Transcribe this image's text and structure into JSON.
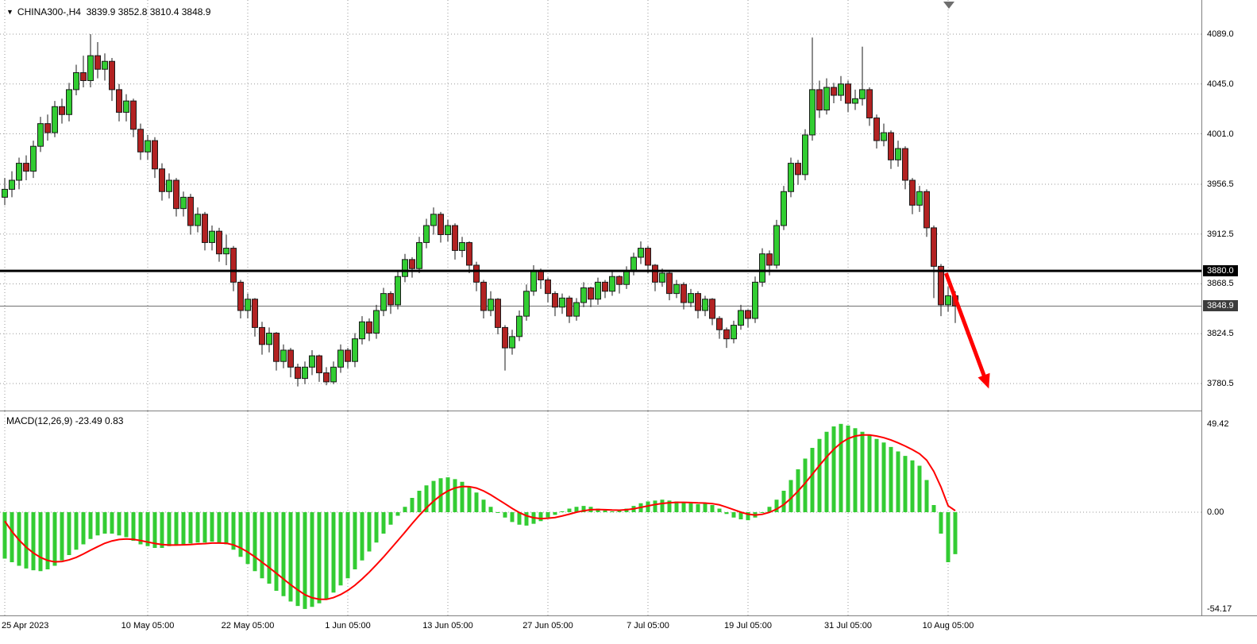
{
  "header": {
    "symbol": "CHINA300-,H4",
    "ohlc": "3839.9 3852.8 3810.4 3848.9"
  },
  "macd": {
    "label": "MACD(12,26,9) -23.49 0.83"
  },
  "colors": {
    "chart_bg": "#FFFFFF",
    "up": "#32CD32",
    "down": "#B22222",
    "wick": "#1A1A1A",
    "grid": "#9A9A9A",
    "histogram": "#33CC33",
    "signal": "#FF0000",
    "level_line": "#000000",
    "bid_line": "#707070",
    "arrow": "#FF0000",
    "axis_text": "#000000",
    "badge_level_bg": "#000000",
    "badge_bid_bg": "#3C3C3C",
    "separator": "#808080"
  },
  "price_axis": {
    "labels": [
      {
        "value": 4089.0,
        "text": "4089.0"
      },
      {
        "value": 4045.0,
        "text": "4045.0"
      },
      {
        "value": 4001.0,
        "text": "4001.0"
      },
      {
        "value": 3956.5,
        "text": "3956.5"
      },
      {
        "value": 3912.5,
        "text": "3912.5"
      },
      {
        "value": 3868.5,
        "text": "3868.5"
      },
      {
        "value": 3824.5,
        "text": "3824.5"
      },
      {
        "value": 3780.5,
        "text": "3780.5"
      }
    ],
    "level_badge": {
      "value": 3880.0,
      "text": "3880.0"
    },
    "bid_badge": {
      "value": 3848.9,
      "text": "3848.9"
    }
  },
  "macd_axis": {
    "labels": [
      {
        "value": 49.42,
        "text": "49.42"
      },
      {
        "value": 0,
        "text": "0.00"
      },
      {
        "value": -54.17,
        "text": "-54.17"
      }
    ]
  },
  "time_axis": [
    {
      "index": 0,
      "label": "25 Apr 2023"
    },
    {
      "index": 20,
      "label": "10 May 05:00"
    },
    {
      "index": 34,
      "label": "22 May 05:00"
    },
    {
      "index": 48,
      "label": "1 Jun 05:00"
    },
    {
      "index": 62,
      "label": "13 Jun 05:00"
    },
    {
      "index": 76,
      "label": "27 Jun 05:00"
    },
    {
      "index": 90,
      "label": "7 Jul 05:00"
    },
    {
      "index": 104,
      "label": "19 Jul 05:00"
    },
    {
      "index": 118,
      "label": "31 Jul 05:00"
    },
    {
      "index": 132,
      "label": "10 Aug 05:00"
    }
  ],
  "chart_data": [
    {
      "type": "candlestick",
      "symbol": "CHINA300-,H4",
      "timeframe": "H4",
      "last_ohlc": {
        "open": 3839.9,
        "high": 3852.8,
        "low": 3810.4,
        "close": 3848.9
      },
      "ylim": [
        3758,
        4101
      ],
      "level_line": 3880.0,
      "bid_price": 3848.9,
      "candles": [
        [
          3945,
          3962,
          3938,
          3952
        ],
        [
          3952,
          3968,
          3945,
          3960
        ],
        [
          3960,
          3980,
          3952,
          3975
        ],
        [
          3975,
          3982,
          3960,
          3968
        ],
        [
          3968,
          3995,
          3962,
          3990
        ],
        [
          3990,
          4016,
          3985,
          4010
        ],
        [
          4010,
          4018,
          3995,
          4002
        ],
        [
          4002,
          4030,
          3998,
          4025
        ],
        [
          4025,
          4032,
          4010,
          4018
        ],
        [
          4018,
          4046,
          4012,
          4040
        ],
        [
          4040,
          4062,
          4035,
          4055
        ],
        [
          4055,
          4070,
          4042,
          4048
        ],
        [
          4048,
          4089,
          4042,
          4070
        ],
        [
          4070,
          4082,
          4050,
          4058
        ],
        [
          4058,
          4072,
          4048,
          4065
        ],
        [
          4065,
          4068,
          4030,
          4040
        ],
        [
          4040,
          4045,
          4012,
          4020
        ],
        [
          4020,
          4036,
          4012,
          4030
        ],
        [
          4030,
          4032,
          3998,
          4005
        ],
        [
          4005,
          4010,
          3978,
          3985
        ],
        [
          3985,
          4000,
          3978,
          3995
        ],
        [
          3995,
          3998,
          3962,
          3970
        ],
        [
          3970,
          3975,
          3942,
          3950
        ],
        [
          3950,
          3966,
          3944,
          3960
        ],
        [
          3960,
          3962,
          3928,
          3935
        ],
        [
          3935,
          3950,
          3928,
          3945
        ],
        [
          3945,
          3948,
          3912,
          3920
        ],
        [
          3920,
          3936,
          3914,
          3930
        ],
        [
          3930,
          3932,
          3898,
          3905
        ],
        [
          3905,
          3920,
          3898,
          3915
        ],
        [
          3915,
          3918,
          3888,
          3895
        ],
        [
          3895,
          3912,
          3885,
          3900
        ],
        [
          3900,
          3902,
          3862,
          3870
        ],
        [
          3870,
          3872,
          3838,
          3845
        ],
        [
          3845,
          3860,
          3838,
          3855
        ],
        [
          3855,
          3856,
          3822,
          3830
        ],
        [
          3830,
          3835,
          3806,
          3815
        ],
        [
          3815,
          3830,
          3808,
          3825
        ],
        [
          3825,
          3826,
          3792,
          3800
        ],
        [
          3800,
          3815,
          3794,
          3810
        ],
        [
          3810,
          3812,
          3786,
          3795
        ],
        [
          3795,
          3798,
          3778,
          3785
        ],
        [
          3785,
          3800,
          3780,
          3795
        ],
        [
          3795,
          3810,
          3788,
          3805
        ],
        [
          3805,
          3806,
          3782,
          3790
        ],
        [
          3790,
          3795,
          3779,
          3782
        ],
        [
          3782,
          3800,
          3780,
          3795
        ],
        [
          3795,
          3815,
          3790,
          3810
        ],
        [
          3810,
          3812,
          3794,
          3800
        ],
        [
          3800,
          3825,
          3795,
          3820
        ],
        [
          3820,
          3840,
          3815,
          3835
        ],
        [
          3835,
          3838,
          3818,
          3825
        ],
        [
          3825,
          3850,
          3820,
          3845
        ],
        [
          3845,
          3865,
          3840,
          3860
        ],
        [
          3860,
          3862,
          3842,
          3850
        ],
        [
          3850,
          3880,
          3846,
          3875
        ],
        [
          3875,
          3895,
          3870,
          3890
        ],
        [
          3890,
          3892,
          3874,
          3882
        ],
        [
          3882,
          3910,
          3878,
          3905
        ],
        [
          3905,
          3926,
          3900,
          3920
        ],
        [
          3920,
          3936,
          3912,
          3930
        ],
        [
          3930,
          3932,
          3905,
          3912
        ],
        [
          3912,
          3925,
          3906,
          3920
        ],
        [
          3920,
          3922,
          3890,
          3898
        ],
        [
          3898,
          3910,
          3892,
          3905
        ],
        [
          3905,
          3906,
          3878,
          3885
        ],
        [
          3885,
          3888,
          3862,
          3870
        ],
        [
          3870,
          3872,
          3838,
          3845
        ],
        [
          3845,
          3862,
          3840,
          3855
        ],
        [
          3855,
          3856,
          3824,
          3830
        ],
        [
          3830,
          3832,
          3792,
          3812
        ],
        [
          3812,
          3828,
          3806,
          3822
        ],
        [
          3822,
          3845,
          3818,
          3840
        ],
        [
          3840,
          3868,
          3836,
          3862
        ],
        [
          3862,
          3885,
          3858,
          3880
        ],
        [
          3880,
          3882,
          3864,
          3872
        ],
        [
          3872,
          3874,
          3852,
          3860
        ],
        [
          3860,
          3862,
          3840,
          3848
        ],
        [
          3848,
          3860,
          3842,
          3856
        ],
        [
          3856,
          3858,
          3834,
          3840
        ],
        [
          3840,
          3856,
          3836,
          3852
        ],
        [
          3852,
          3870,
          3848,
          3865
        ],
        [
          3865,
          3866,
          3848,
          3855
        ],
        [
          3855,
          3874,
          3850,
          3870
        ],
        [
          3870,
          3872,
          3856,
          3862
        ],
        [
          3862,
          3880,
          3858,
          3875
        ],
        [
          3875,
          3876,
          3860,
          3868
        ],
        [
          3868,
          3884,
          3864,
          3880
        ],
        [
          3880,
          3896,
          3876,
          3892
        ],
        [
          3892,
          3906,
          3886,
          3900
        ],
        [
          3900,
          3902,
          3878,
          3885
        ],
        [
          3885,
          3886,
          3862,
          3870
        ],
        [
          3870,
          3882,
          3866,
          3878
        ],
        [
          3878,
          3880,
          3854,
          3860
        ],
        [
          3860,
          3872,
          3856,
          3868
        ],
        [
          3868,
          3870,
          3846,
          3852
        ],
        [
          3852,
          3864,
          3848,
          3860
        ],
        [
          3860,
          3862,
          3838,
          3845
        ],
        [
          3845,
          3858,
          3840,
          3855
        ],
        [
          3855,
          3856,
          3832,
          3838
        ],
        [
          3838,
          3840,
          3820,
          3828
        ],
        [
          3828,
          3830,
          3812,
          3820
        ],
        [
          3820,
          3836,
          3816,
          3832
        ],
        [
          3832,
          3850,
          3828,
          3845
        ],
        [
          3845,
          3846,
          3830,
          3838
        ],
        [
          3838,
          3875,
          3834,
          3870
        ],
        [
          3870,
          3900,
          3866,
          3895
        ],
        [
          3895,
          3898,
          3876,
          3885
        ],
        [
          3885,
          3925,
          3882,
          3920
        ],
        [
          3920,
          3955,
          3916,
          3950
        ],
        [
          3950,
          3980,
          3945,
          3975
        ],
        [
          3975,
          3978,
          3956,
          3965
        ],
        [
          3965,
          4005,
          3960,
          4000
        ],
        [
          4000,
          4086,
          3995,
          4040
        ],
        [
          4040,
          4048,
          4015,
          4022
        ],
        [
          4022,
          4050,
          4018,
          4042
        ],
        [
          4042,
          4046,
          4028,
          4035
        ],
        [
          4035,
          4052,
          4030,
          4045
        ],
        [
          4045,
          4048,
          4020,
          4028
        ],
        [
          4028,
          4040,
          4022,
          4032
        ],
        [
          4032,
          4078,
          4026,
          4040
        ],
        [
          4040,
          4042,
          4008,
          4015
        ],
        [
          4015,
          4018,
          3988,
          3995
        ],
        [
          3995,
          4010,
          3990,
          4002
        ],
        [
          4002,
          4004,
          3970,
          3978
        ],
        [
          3978,
          3995,
          3972,
          3988
        ],
        [
          3988,
          3990,
          3952,
          3960
        ],
        [
          3960,
          3962,
          3930,
          3938
        ],
        [
          3938,
          3955,
          3932,
          3950
        ],
        [
          3950,
          3952,
          3910,
          3918
        ],
        [
          3918,
          3920,
          3856,
          3884
        ],
        [
          3884,
          3886,
          3840,
          3850
        ],
        [
          3850,
          3866,
          3844,
          3858
        ],
        [
          3858,
          3862,
          3834,
          3848.9
        ]
      ],
      "annotations": [
        {
          "type": "arrow",
          "from_index": 131.7,
          "from_price": 3878,
          "to_index": 137.7,
          "to_price": 3776,
          "color": "#FF0000"
        }
      ]
    },
    {
      "type": "macd",
      "title": "MACD(12,26,9)",
      "current": {
        "macd": -23.49,
        "signal": 0.83
      },
      "ylim": [
        -54.17,
        49.42
      ],
      "histogram": [
        -26,
        -28,
        -30,
        -31.5,
        -32.5,
        -33,
        -32,
        -30,
        -27,
        -24,
        -21,
        -18,
        -15,
        -13,
        -12,
        -12,
        -13,
        -14,
        -16,
        -18,
        -19,
        -20,
        -20,
        -19,
        -18.5,
        -18,
        -17.5,
        -17,
        -17,
        -16.5,
        -17,
        -18,
        -21,
        -25,
        -29,
        -33,
        -37,
        -40,
        -44,
        -47,
        -50,
        -52.5,
        -54.17,
        -53,
        -51,
        -49,
        -45,
        -41,
        -37,
        -32,
        -27,
        -22,
        -17,
        -12,
        -7,
        -2,
        3,
        8,
        12,
        15,
        17.5,
        19,
        19.5,
        18.5,
        17,
        14,
        11,
        7,
        3,
        0,
        -3,
        -5.5,
        -7,
        -7.5,
        -6.5,
        -5,
        -3,
        -1.5,
        0.5,
        2,
        3,
        3.5,
        3,
        2,
        1,
        0.5,
        1,
        2,
        3.5,
        5,
        6,
        6.5,
        7,
        6.5,
        6,
        5.5,
        5,
        4.5,
        5,
        4,
        2,
        -1,
        -3,
        -4,
        -4.5,
        -3,
        0,
        3,
        7,
        12,
        18,
        24,
        30,
        36,
        41,
        45,
        48,
        49.42,
        48.5,
        47,
        45,
        43,
        41,
        39,
        36.5,
        34,
        31.5,
        29,
        26,
        18,
        4,
        -12,
        -28,
        -23.49
      ],
      "signal": [
        -5,
        -10.8,
        -15.6,
        -19.6,
        -22.8,
        -25.3,
        -27,
        -27.8,
        -27.6,
        -26.7,
        -25.3,
        -23.4,
        -21.3,
        -19.3,
        -17.4,
        -16.1,
        -15.3,
        -15,
        -15.2,
        -15.9,
        -16.7,
        -17.5,
        -18.1,
        -18.4,
        -18.4,
        -18.3,
        -18.1,
        -17.8,
        -17.6,
        -17.3,
        -17.3,
        -17.4,
        -18.3,
        -20,
        -22.3,
        -25,
        -28,
        -31,
        -34.2,
        -37.4,
        -40.6,
        -43.5,
        -46.2,
        -47.9,
        -48.7,
        -48.8,
        -47.8,
        -46.1,
        -43.8,
        -40.9,
        -37.4,
        -33.6,
        -29.4,
        -25.1,
        -20.5,
        -15.9,
        -11.2,
        -6.4,
        -1.8,
        2.4,
        6.2,
        9.4,
        11.9,
        13.6,
        14.4,
        14.3,
        13.5,
        11.9,
        9.7,
        7.2,
        4.7,
        2.1,
        -0.2,
        -2,
        -3.1,
        -3.6,
        -3.4,
        -3,
        -2.1,
        -1.1,
        0,
        0.8,
        1.4,
        1.5,
        1.4,
        1.2,
        1.1,
        1.4,
        1.9,
        2.7,
        3.5,
        4.3,
        4.9,
        5.3,
        5.5,
        5.5,
        5.4,
        5.2,
        5.1,
        4.8,
        4.1,
        2.8,
        1.4,
        0,
        -1.1,
        -1.6,
        -1.2,
        -0.1,
        1.7,
        4.2,
        7.7,
        11.8,
        16.3,
        21.2,
        26.2,
        30.9,
        35.2,
        38.7,
        41.2,
        42.6,
        43.2,
        43.2,
        42.6,
        41.7,
        40.4,
        38.8,
        37,
        35,
        32.7,
        29.1,
        22.8,
        14.1,
        3.6,
        0.83
      ]
    }
  ]
}
